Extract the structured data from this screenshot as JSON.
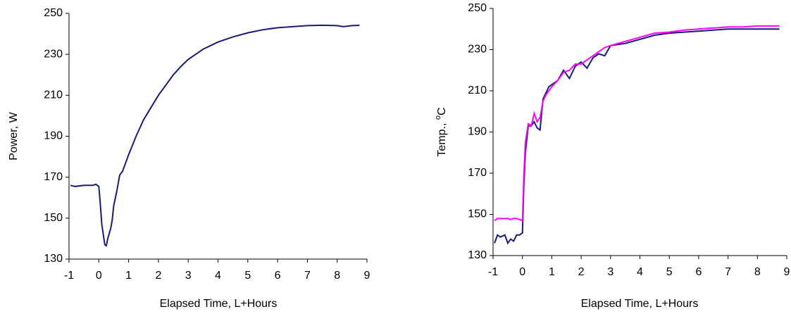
{
  "chart_data": [
    {
      "type": "line",
      "xlabel": "Elapsed Time, L+Hours",
      "ylabel": [
        "Power, W"
      ],
      "xlim": [
        -1,
        9
      ],
      "xticks": [
        -1,
        0,
        1,
        2,
        3,
        4,
        5,
        6,
        7,
        8,
        9
      ],
      "ylim": [
        130,
        250
      ],
      "yticks": [
        130,
        150,
        170,
        190,
        210,
        230,
        250
      ],
      "grid": false,
      "series": [
        {
          "color": "#1a1a7a",
          "x": [
            -0.95,
            -0.8,
            -0.5,
            -0.2,
            -0.1,
            0,
            0.05,
            0.1,
            0.2,
            0.25,
            0.3,
            0.4,
            0.45,
            0.5,
            0.6,
            0.7,
            0.8,
            0.9,
            1,
            1.25,
            1.5,
            1.75,
            2,
            2.25,
            2.5,
            2.75,
            3,
            3.5,
            4,
            4.5,
            5,
            5.5,
            6,
            6.5,
            7,
            7.5,
            8,
            8.2,
            8.5,
            8.75
          ],
          "values": [
            166,
            165.5,
            166,
            166,
            166.5,
            165.5,
            157,
            147,
            137,
            136.5,
            140,
            145,
            149,
            156,
            163,
            171,
            173,
            177,
            181,
            190,
            198,
            204,
            210,
            215,
            220,
            224,
            227.5,
            232.5,
            236,
            238.5,
            240.5,
            242,
            243,
            243.5,
            244,
            244.2,
            244,
            243.5,
            244,
            244.2
          ]
        }
      ]
    },
    {
      "type": "line",
      "xlabel": "Elapsed Time, L+Hours",
      "ylabel": [
        "Temp., ",
        "o",
        "C"
      ],
      "xlim": [
        -1,
        9
      ],
      "xticks": [
        -1,
        0,
        1,
        2,
        3,
        4,
        5,
        6,
        7,
        8,
        9
      ],
      "ylim": [
        130,
        250
      ],
      "yticks": [
        130,
        150,
        170,
        190,
        210,
        230,
        250
      ],
      "grid": false,
      "series": [
        {
          "color": "#1a1a7a",
          "x": [
            -0.95,
            -0.85,
            -0.75,
            -0.6,
            -0.5,
            -0.4,
            -0.3,
            -0.2,
            -0.1,
            0,
            0.05,
            0.1,
            0.2,
            0.3,
            0.4,
            0.5,
            0.6,
            0.7,
            0.8,
            0.9,
            1,
            1.2,
            1.4,
            1.6,
            1.8,
            2,
            2.2,
            2.4,
            2.6,
            2.8,
            3,
            3.5,
            4,
            4.5,
            5,
            5.5,
            6,
            6.5,
            7,
            7.5,
            8,
            8.5,
            8.75
          ],
          "values": [
            136,
            140,
            139,
            140,
            136,
            138,
            137,
            140,
            140,
            141,
            165,
            180,
            193,
            193,
            195,
            192,
            191,
            206,
            209,
            212,
            213,
            215,
            220,
            216,
            222,
            224,
            221,
            226,
            228,
            227,
            232,
            233,
            235,
            237,
            238,
            238.5,
            239,
            239.5,
            240,
            240,
            240,
            240,
            240
          ]
        },
        {
          "color": "#ff00ff",
          "x": [
            -0.95,
            -0.85,
            -0.75,
            -0.6,
            -0.5,
            -0.4,
            -0.3,
            -0.2,
            -0.1,
            0,
            0.05,
            0.1,
            0.2,
            0.3,
            0.4,
            0.5,
            0.6,
            0.7,
            0.8,
            0.9,
            1,
            1.2,
            1.4,
            1.6,
            1.8,
            2,
            2.2,
            2.4,
            2.6,
            2.8,
            3,
            3.5,
            4,
            4.5,
            5,
            5.5,
            6,
            6.5,
            7,
            7.5,
            8,
            8.5,
            8.75
          ],
          "values": [
            147,
            148,
            148,
            148,
            148,
            147.5,
            148,
            148,
            147.5,
            147,
            170,
            185,
            194,
            193,
            199,
            195,
            197,
            205,
            208,
            210,
            212,
            215,
            219,
            220,
            223,
            223,
            225,
            227,
            229,
            231,
            232,
            234,
            236,
            238,
            238.5,
            239.5,
            240,
            240.5,
            241,
            241,
            241.5,
            241.5,
            241.5
          ]
        }
      ]
    }
  ]
}
